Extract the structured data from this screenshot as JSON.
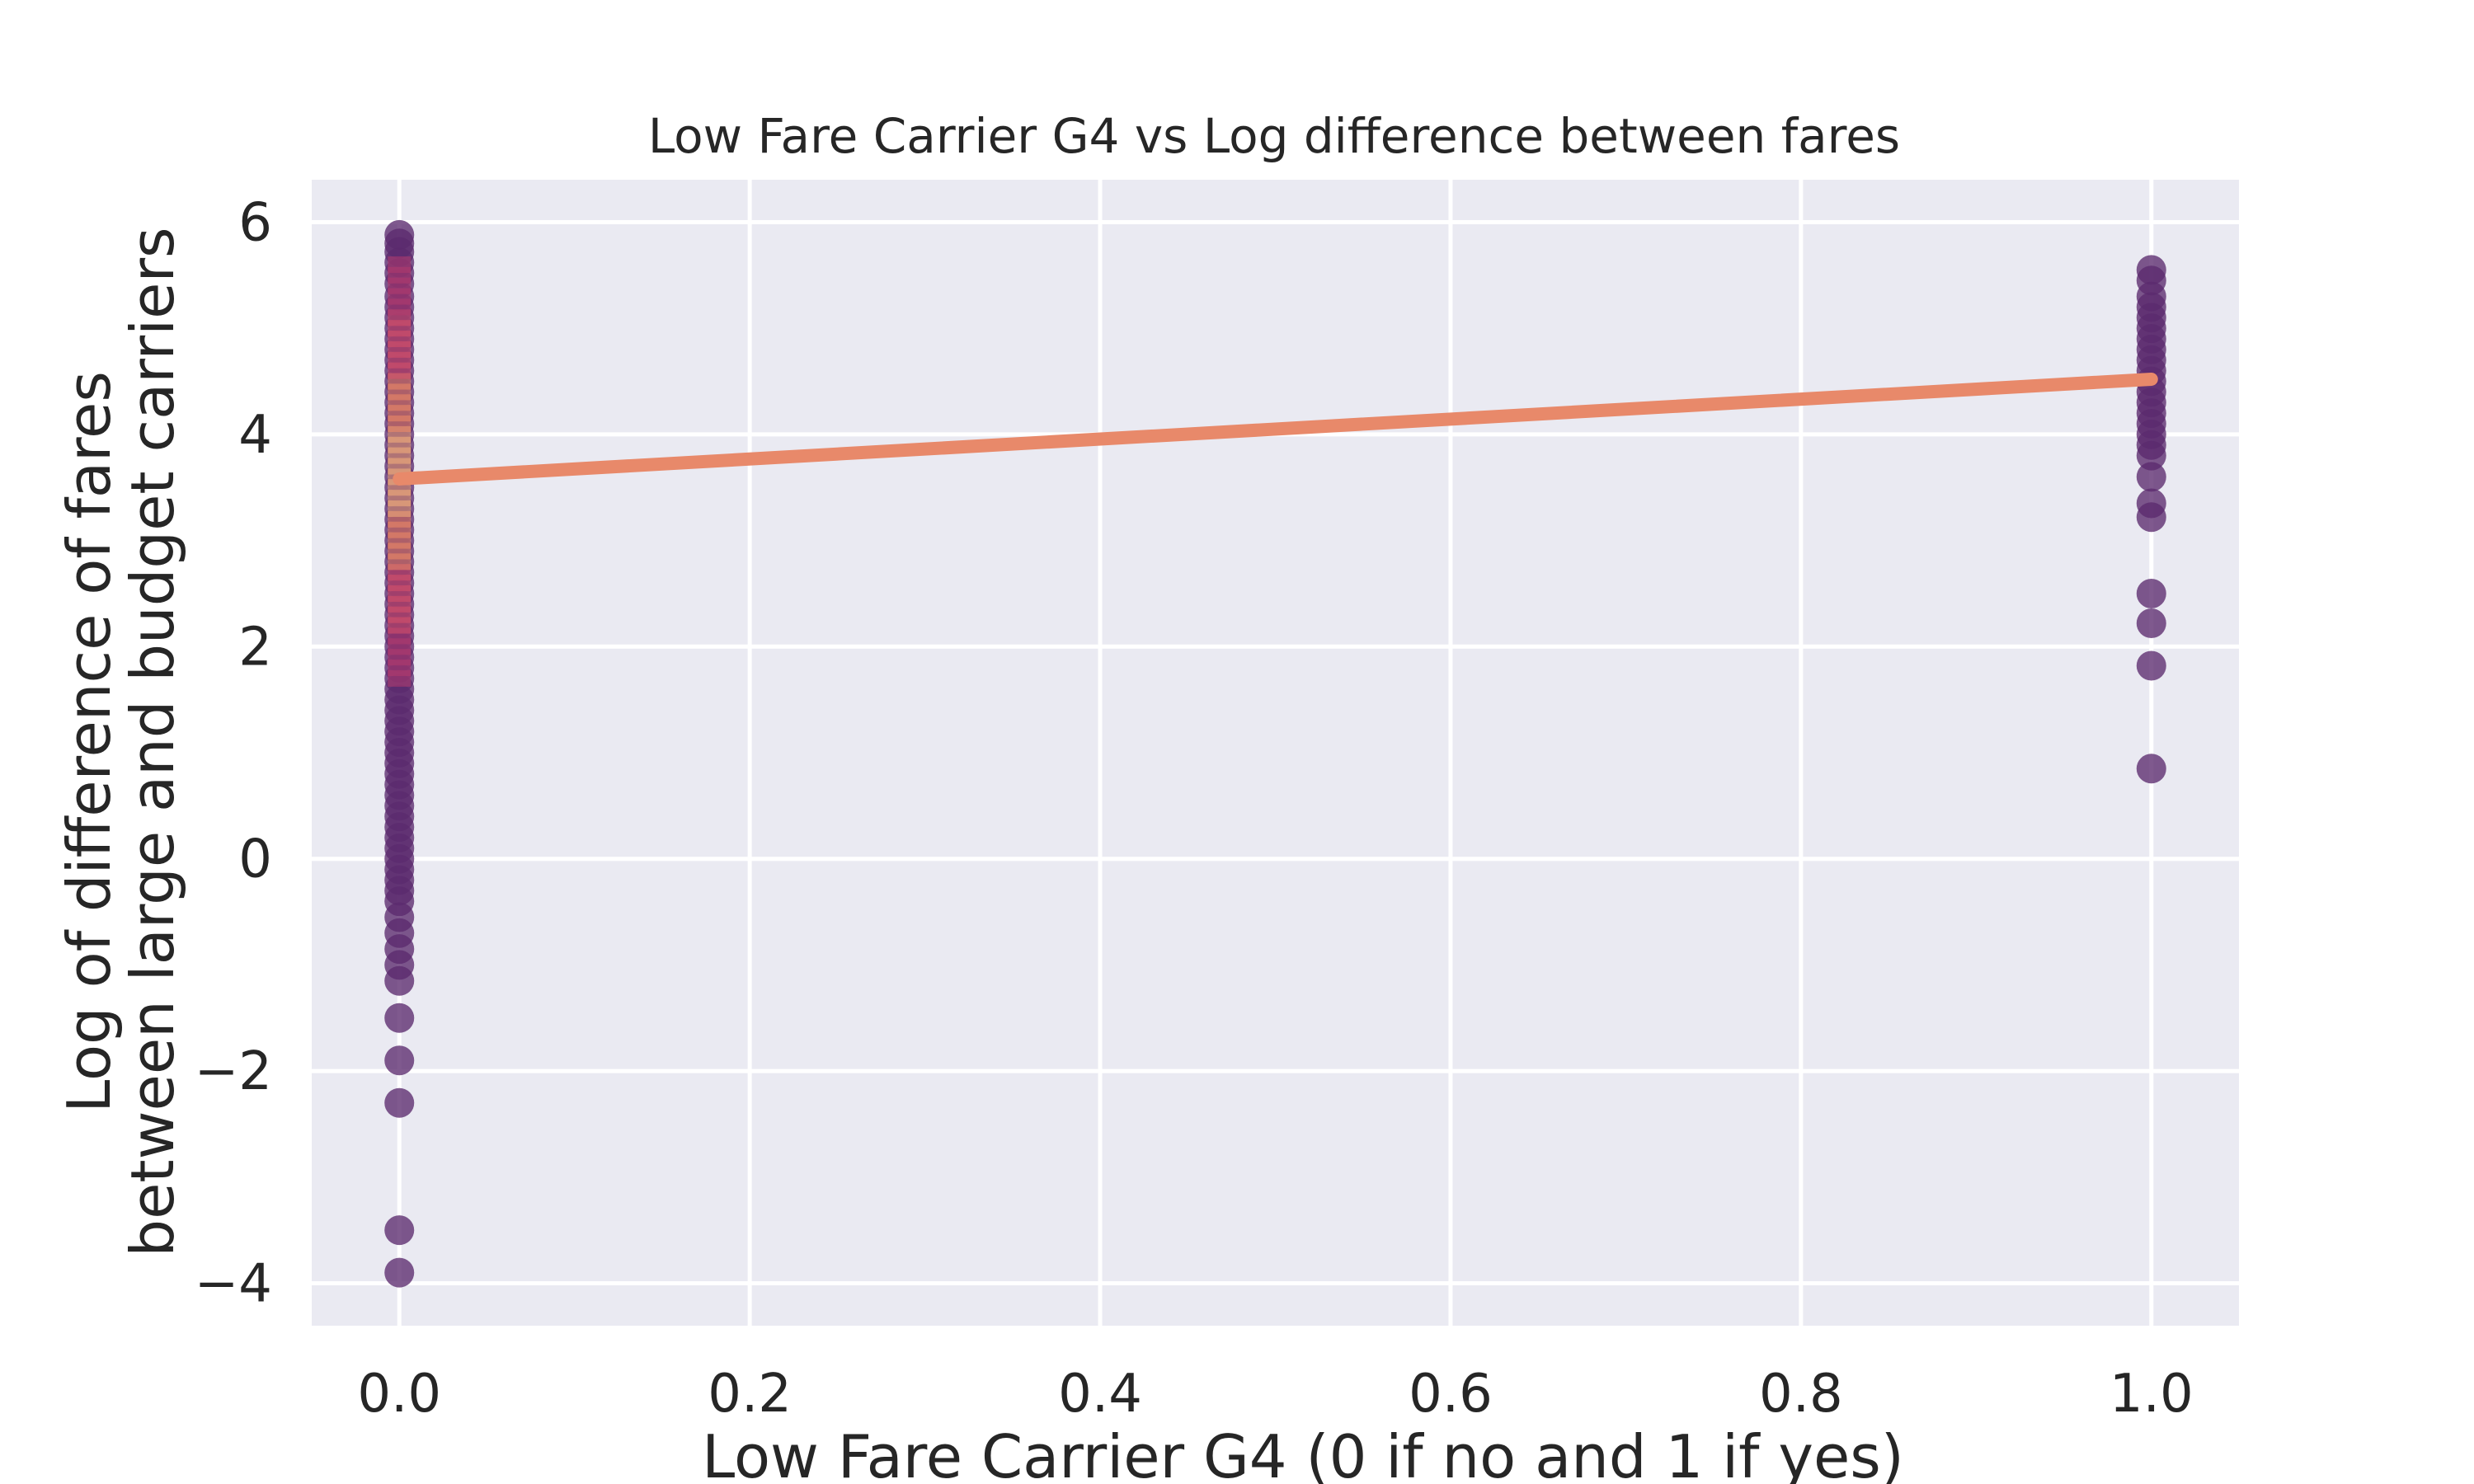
{
  "chart_data": {
    "type": "scatter",
    "title": "Low Fare Carrier G4 vs Log difference between fares",
    "xlabel": "Low Fare Carrier G4 (0 if no and 1 if yes)",
    "ylabel_lines": [
      "Log of difference of fares",
      "between large and budget carriers"
    ],
    "xlim": [
      -0.05,
      1.05
    ],
    "ylim": [
      -4.4,
      6.4
    ],
    "x_ticks": [
      0.0,
      0.2,
      0.4,
      0.6,
      0.8,
      1.0
    ],
    "x_tick_labels": [
      "0.0",
      "0.2",
      "0.4",
      "0.6",
      "0.8",
      "1.0"
    ],
    "y_ticks": [
      -4,
      -2,
      0,
      2,
      4,
      6
    ],
    "y_tick_labels": [
      "−4",
      "−2",
      "0",
      "2",
      "4",
      "6"
    ],
    "grid": true,
    "background_color": "#eaeaf2",
    "point_color": "#5b2a6e",
    "regression_color": "#e8896a",
    "regression_line": {
      "x": [
        0,
        1
      ],
      "y": [
        3.58,
        4.52
      ]
    },
    "series": [
      {
        "x": [
          0,
          0,
          0,
          0,
          0,
          0,
          0,
          0,
          0,
          0,
          0,
          0,
          0,
          0,
          0,
          0,
          0,
          0,
          0,
          0,
          0,
          0,
          0,
          0,
          0,
          0,
          0,
          0,
          0,
          0,
          0,
          0,
          0,
          0,
          0,
          0,
          0,
          0,
          0,
          0,
          0,
          0,
          0,
          0,
          0,
          0,
          0,
          0,
          0,
          0,
          0,
          0,
          0,
          0,
          0,
          0,
          0,
          0,
          0,
          0,
          0,
          0,
          0,
          0,
          0,
          0,
          0,
          0,
          0,
          0,
          0,
          0,
          0,
          0
        ],
        "y": [
          5.88,
          5.8,
          5.72,
          5.62,
          5.52,
          5.42,
          5.3,
          5.2,
          5.1,
          5.0,
          4.9,
          4.8,
          4.7,
          4.6,
          4.5,
          4.4,
          4.3,
          4.2,
          4.1,
          4.0,
          3.9,
          3.8,
          3.7,
          3.6,
          3.5,
          3.4,
          3.3,
          3.2,
          3.1,
          3.0,
          2.9,
          2.8,
          2.7,
          2.6,
          2.5,
          2.4,
          2.3,
          2.2,
          2.1,
          2.0,
          1.9,
          1.8,
          1.7,
          1.6,
          1.5,
          1.4,
          1.3,
          1.2,
          1.1,
          1.0,
          0.9,
          0.8,
          0.7,
          0.6,
          0.5,
          0.4,
          0.3,
          0.2,
          0.1,
          0.0,
          -0.1,
          -0.2,
          -0.3,
          -0.4,
          -0.55,
          -0.7,
          -0.85,
          -1.0,
          -1.15,
          -1.5,
          -1.9,
          -2.3,
          -3.5,
          -3.9
        ]
      },
      {
        "x": [
          1,
          1,
          1,
          1,
          1,
          1,
          1,
          1,
          1,
          1,
          1,
          1,
          1,
          1,
          1,
          1,
          1,
          1,
          1,
          1,
          1,
          1,
          1,
          1,
          1
        ],
        "y": [
          5.55,
          5.45,
          5.3,
          5.2,
          5.1,
          5.0,
          4.9,
          4.8,
          4.7,
          4.6,
          4.5,
          4.4,
          4.3,
          4.2,
          4.1,
          4.0,
          3.9,
          3.8,
          3.6,
          3.35,
          3.22,
          2.5,
          2.22,
          1.82,
          0.85
        ]
      }
    ],
    "density_band": {
      "x": 0,
      "y_range": [
        1.7,
        5.6
      ],
      "colors": [
        "#b23a6e",
        "#d8506a",
        "#f08a64",
        "#f6b07a"
      ]
    }
  }
}
